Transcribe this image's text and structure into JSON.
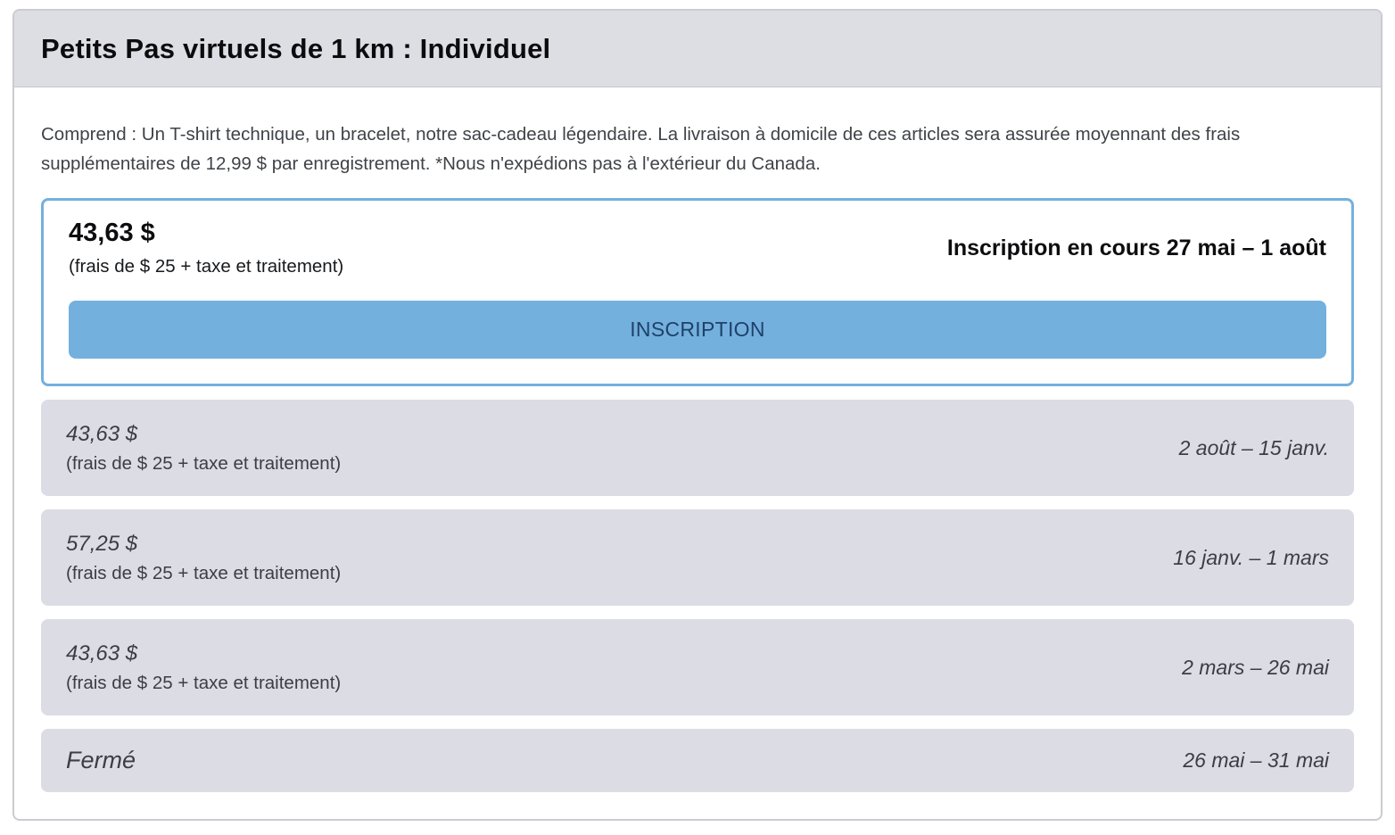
{
  "page": {
    "title": "Petits Pas virtuels de 1 km : Individuel",
    "description": "Comprend : Un T-shirt technique, un bracelet, notre sac-cadeau légendaire. La livraison à domicile de ces articles sera assurée moyennant des frais supplémentaires de 12,99 $ par enregistrement. *Nous n'expédions pas à l'extérieur du Canada."
  },
  "active_period": {
    "price": "43,63 $",
    "fees_note": "(frais de $ 25 + taxe et traitement)",
    "status": "Inscription en cours 27 mai – 1 août",
    "button_label": "INSCRIPTION"
  },
  "other_periods": [
    {
      "price": "43,63 $",
      "fees_note": "(frais de $ 25 + taxe et traitement)",
      "dates": "2 août – 15 janv."
    },
    {
      "price": "57,25 $",
      "fees_note": "(frais de $ 25 + taxe et traitement)",
      "dates": "16 janv. – 1 mars"
    },
    {
      "price": "43,63 $",
      "fees_note": "(frais de $ 25 + taxe et traitement)",
      "dates": "2 mars – 26 mai"
    },
    {
      "price": "Fermé",
      "fees_note": "",
      "dates": "26 mai – 31 mai"
    }
  ],
  "colors": {
    "accent_blue": "#74b0de",
    "button_text": "#1f4168",
    "header_bg": "#dddde4",
    "row_bg": "#dcdce4",
    "border_gray": "#cbcbd1"
  }
}
